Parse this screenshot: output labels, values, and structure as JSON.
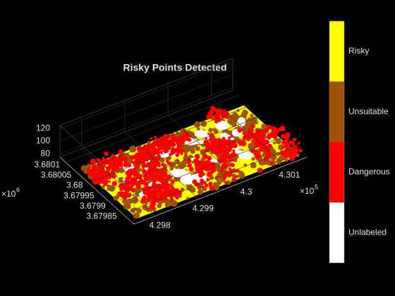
{
  "chart_data": {
    "type": "scatter3",
    "title": "Risky Points Detected",
    "xlim": [
      429750,
      430150
    ],
    "ylim": [
      3679800,
      3680125
    ],
    "zlim": [
      75,
      125
    ],
    "xticks": [
      {
        "value": 429800,
        "label": "4.298"
      },
      {
        "value": 429900,
        "label": "4.299"
      },
      {
        "value": 430000,
        "label": "4.3"
      },
      {
        "value": 430100,
        "label": "4.301"
      }
    ],
    "yticks": [
      {
        "value": 3679850,
        "label": "3.67985"
      },
      {
        "value": 3679900,
        "label": "3.6799"
      },
      {
        "value": 3679950,
        "label": "3.67995"
      },
      {
        "value": 3680000,
        "label": "3.68"
      },
      {
        "value": 3680050,
        "label": "3.68005"
      },
      {
        "value": 3680100,
        "label": "3.6801"
      }
    ],
    "zticks": [
      80,
      100,
      120
    ],
    "x_multiplier": {
      "base": "×10",
      "exponent": "5"
    },
    "y_multiplier": {
      "base": "×10",
      "exponent": "6"
    },
    "grid": true,
    "colorbar": {
      "labels": [
        "Unlabeled",
        "Dangerous",
        "Unsuitable",
        "Risky"
      ],
      "colors": [
        "#ffffff",
        "#ff0000",
        "#a0520a",
        "#ffff00"
      ]
    }
  }
}
